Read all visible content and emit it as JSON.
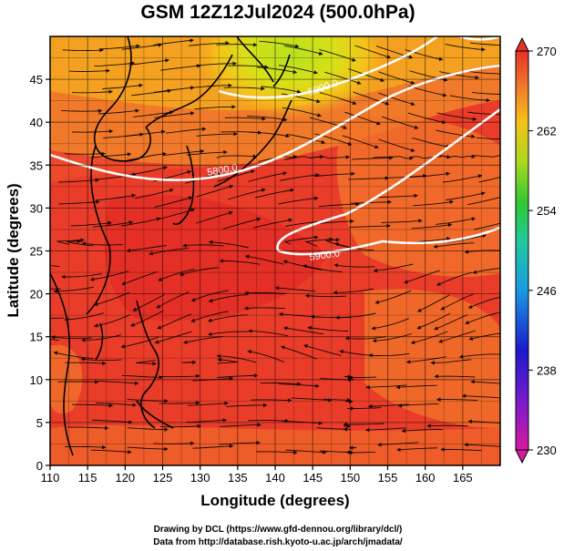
{
  "title": "GSM 12Z12Jul2024 (500.0hPa)",
  "x_axis": {
    "label": "Longitude (degrees)",
    "range": [
      110,
      170
    ],
    "ticks": [
      "110",
      "115",
      "120",
      "125",
      "130",
      "135",
      "140",
      "145",
      "150",
      "155",
      "160",
      "165"
    ]
  },
  "y_axis": {
    "label": "Latitude  (degrees)",
    "range": [
      0,
      50
    ],
    "ticks": [
      "0",
      "5",
      "10",
      "15",
      "20",
      "25",
      "30",
      "35",
      "40",
      "45"
    ]
  },
  "colorbar": {
    "range": [
      230,
      270
    ],
    "ticks": [
      "230",
      "238",
      "246",
      "254",
      "262",
      "270"
    ],
    "colormap": "rainbow (magenta-blue-cyan-green-yellow-orange-red)"
  },
  "contours": [
    {
      "label": "5900.0",
      "color": "#ffffff"
    },
    {
      "label": "5800.0",
      "color": "#ffffff"
    },
    {
      "label": "5900.0",
      "color": "#ffffff"
    }
  ],
  "credits": {
    "line1": "Drawing by DCL (https://www.gfd-dennou.org/library/dcl/)",
    "line2": "Data from http://database.rish.kyoto-u.ac.jp/arch/jmadata/"
  },
  "colors": {
    "field_warm": "#e8352a",
    "field_mid": "#f06a2c",
    "field_cool": "#f4a020",
    "field_cold": "#a8d820",
    "streamline": "#000000",
    "contour": "#ffffff"
  }
}
